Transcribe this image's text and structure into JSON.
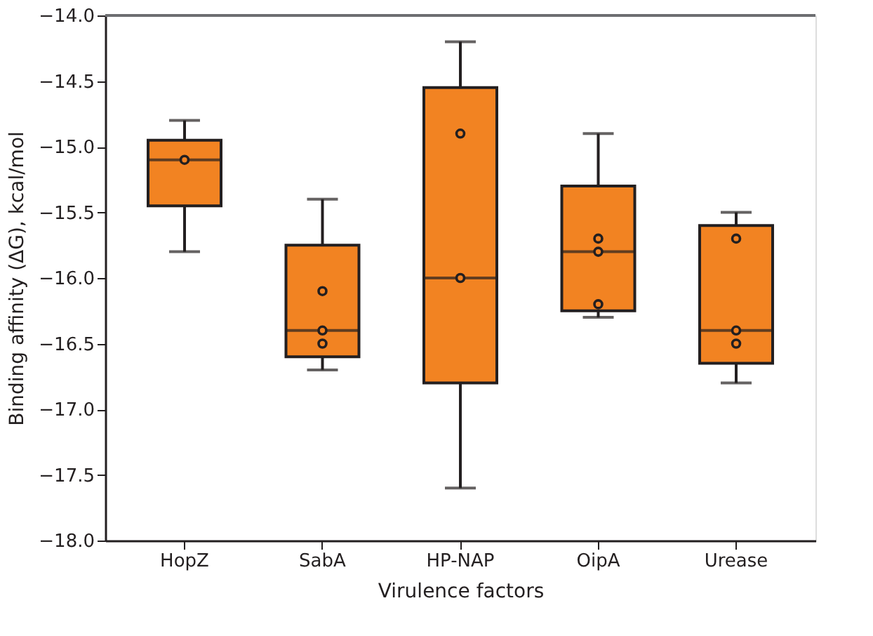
{
  "chart_data": {
    "type": "box",
    "xlabel": "Virulence factors",
    "ylabel": "Binding affinity (ΔG), kcal/mol",
    "categories": [
      "HopZ",
      "SabA",
      "HP-NAP",
      "OipA",
      "Urease"
    ],
    "ylim": [
      -18.0,
      -14.0
    ],
    "yticks": [
      {
        "value": -18.0,
        "label": "−18.0"
      },
      {
        "value": -17.5,
        "label": "−17.5"
      },
      {
        "value": -17.0,
        "label": "−17.0"
      },
      {
        "value": -16.5,
        "label": "−16.5"
      },
      {
        "value": -16.0,
        "label": "−16.0"
      },
      {
        "value": -15.5,
        "label": "−15.5"
      },
      {
        "value": -15.0,
        "label": "−15.0"
      },
      {
        "value": -14.5,
        "label": "−14.5"
      },
      {
        "value": -14.0,
        "label": "−14.0"
      }
    ],
    "grid": false,
    "series": [
      {
        "color": "#f28322",
        "boxes": [
          {
            "low": -15.8,
            "q1": -15.45,
            "median": -15.1,
            "q3": -14.95,
            "high": -14.8
          },
          {
            "low": -16.7,
            "q1": -16.6,
            "median": -16.4,
            "q3": -15.75,
            "high": -15.4
          },
          {
            "low": -17.6,
            "q1": -16.8,
            "median": -16.0,
            "q3": -14.55,
            "high": -14.2
          },
          {
            "low": -16.3,
            "q1": -16.25,
            "median": -15.8,
            "q3": -15.3,
            "high": -14.9
          },
          {
            "low": -16.8,
            "q1": -16.65,
            "median": -16.4,
            "q3": -15.6,
            "high": -15.5
          }
        ]
      },
      {
        "type": "scatter",
        "color": "#f28322",
        "marker": "circle",
        "x": [
          "HopZ",
          "SabA",
          "SabA",
          "SabA",
          "HP-NAP",
          "HP-NAP",
          "OipA",
          "OipA",
          "OipA",
          "Urease",
          "Urease",
          "Urease"
        ],
        "values": [
          -15.1,
          -16.1,
          -16.4,
          -16.5,
          -14.9,
          -16.0,
          -15.7,
          -15.8,
          -16.2,
          -15.7,
          -16.4,
          -16.5
        ]
      }
    ]
  }
}
